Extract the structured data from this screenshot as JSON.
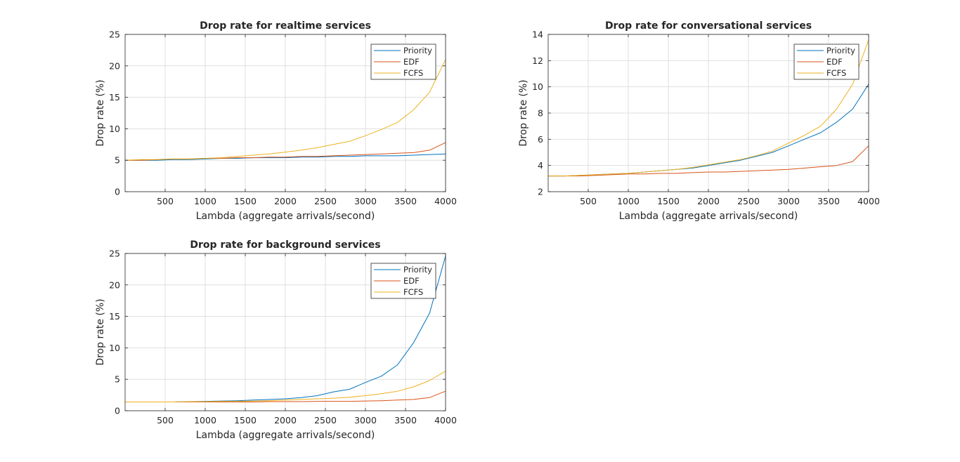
{
  "colors": {
    "Priority": "#0072BD",
    "EDF": "#D95319",
    "FCFS": "#EDB120"
  },
  "chart_data": [
    {
      "type": "line",
      "title": "Drop rate for realtime services",
      "xlabel": "Lambda (aggregate arrivals/second)",
      "ylabel": "Drop rate (%)",
      "xlim": [
        0,
        4000
      ],
      "ylim": [
        0,
        25
      ],
      "xticks": [
        500,
        1000,
        1500,
        2000,
        2500,
        3000,
        3500,
        4000
      ],
      "yticks": [
        0,
        5,
        10,
        15,
        20,
        25
      ],
      "grid": true,
      "legend": "top-right",
      "x": [
        0,
        200,
        400,
        600,
        800,
        1000,
        1200,
        1400,
        1600,
        1800,
        2000,
        2200,
        2400,
        2600,
        2800,
        3000,
        3200,
        3400,
        3600,
        3800,
        4000
      ],
      "series": [
        {
          "name": "Priority",
          "values": [
            5.0,
            5.0,
            5.0,
            5.1,
            5.1,
            5.2,
            5.3,
            5.3,
            5.4,
            5.4,
            5.4,
            5.5,
            5.5,
            5.6,
            5.6,
            5.7,
            5.7,
            5.7,
            5.8,
            5.9,
            6.0
          ]
        },
        {
          "name": "EDF",
          "values": [
            5.0,
            5.0,
            5.1,
            5.2,
            5.2,
            5.3,
            5.3,
            5.4,
            5.4,
            5.5,
            5.5,
            5.6,
            5.6,
            5.7,
            5.8,
            5.9,
            6.0,
            6.1,
            6.2,
            6.6,
            7.8
          ]
        },
        {
          "name": "FCFS",
          "values": [
            5.0,
            5.1,
            5.1,
            5.2,
            5.2,
            5.3,
            5.4,
            5.6,
            5.8,
            6.0,
            6.3,
            6.6,
            7.0,
            7.5,
            8.0,
            8.9,
            9.9,
            11.0,
            13.0,
            15.8,
            21.0
          ]
        }
      ]
    },
    {
      "type": "line",
      "title": "Drop rate for conversational services",
      "xlabel": "Lambda (aggregate arrivals/second)",
      "ylabel": "Drop rate (%)",
      "xlim": [
        0,
        4000
      ],
      "ylim": [
        2,
        14
      ],
      "xticks": [
        500,
        1000,
        1500,
        2000,
        2500,
        3000,
        3500,
        4000
      ],
      "yticks": [
        2,
        4,
        6,
        8,
        10,
        12,
        14
      ],
      "grid": true,
      "legend": "top-right",
      "x": [
        0,
        200,
        400,
        600,
        800,
        1000,
        1200,
        1400,
        1600,
        1800,
        2000,
        2200,
        2400,
        2600,
        2800,
        3000,
        3200,
        3400,
        3600,
        3800,
        4000
      ],
      "series": [
        {
          "name": "Priority",
          "values": [
            3.2,
            3.2,
            3.25,
            3.3,
            3.35,
            3.4,
            3.5,
            3.6,
            3.7,
            3.8,
            4.0,
            4.2,
            4.4,
            4.7,
            5.0,
            5.5,
            6.0,
            6.5,
            7.3,
            8.3,
            10.2
          ]
        },
        {
          "name": "EDF",
          "values": [
            3.2,
            3.2,
            3.2,
            3.25,
            3.3,
            3.35,
            3.35,
            3.4,
            3.4,
            3.45,
            3.5,
            3.5,
            3.55,
            3.6,
            3.65,
            3.7,
            3.8,
            3.9,
            4.0,
            4.3,
            5.5
          ]
        },
        {
          "name": "FCFS",
          "values": [
            3.2,
            3.2,
            3.25,
            3.3,
            3.35,
            3.4,
            3.5,
            3.6,
            3.7,
            3.85,
            4.05,
            4.25,
            4.45,
            4.75,
            5.1,
            5.7,
            6.3,
            7.0,
            8.3,
            10.2,
            13.6
          ]
        }
      ]
    },
    {
      "type": "line",
      "title": "Drop rate for background services",
      "xlabel": "Lambda (aggregate arrivals/second)",
      "ylabel": "Drop rate (%)",
      "xlim": [
        0,
        4000
      ],
      "ylim": [
        0,
        25
      ],
      "xticks": [
        500,
        1000,
        1500,
        2000,
        2500,
        3000,
        3500,
        4000
      ],
      "yticks": [
        0,
        5,
        10,
        15,
        20,
        25
      ],
      "grid": true,
      "legend": "top-right",
      "x": [
        0,
        200,
        400,
        600,
        800,
        1000,
        1200,
        1400,
        1600,
        1800,
        2000,
        2200,
        2400,
        2600,
        2800,
        3000,
        3200,
        3400,
        3600,
        3800,
        4000
      ],
      "series": [
        {
          "name": "Priority",
          "values": [
            1.4,
            1.4,
            1.4,
            1.4,
            1.45,
            1.5,
            1.55,
            1.6,
            1.7,
            1.8,
            1.9,
            2.1,
            2.4,
            3.0,
            3.4,
            4.5,
            5.5,
            7.3,
            10.8,
            15.5,
            24.6
          ]
        },
        {
          "name": "EDF",
          "values": [
            1.4,
            1.4,
            1.4,
            1.4,
            1.4,
            1.4,
            1.4,
            1.4,
            1.4,
            1.45,
            1.45,
            1.45,
            1.5,
            1.5,
            1.5,
            1.55,
            1.6,
            1.7,
            1.8,
            2.1,
            3.1
          ]
        },
        {
          "name": "FCFS",
          "values": [
            1.4,
            1.4,
            1.4,
            1.4,
            1.45,
            1.45,
            1.5,
            1.5,
            1.55,
            1.6,
            1.7,
            1.8,
            1.9,
            2.0,
            2.15,
            2.4,
            2.7,
            3.1,
            3.8,
            4.8,
            6.3
          ]
        }
      ]
    }
  ]
}
